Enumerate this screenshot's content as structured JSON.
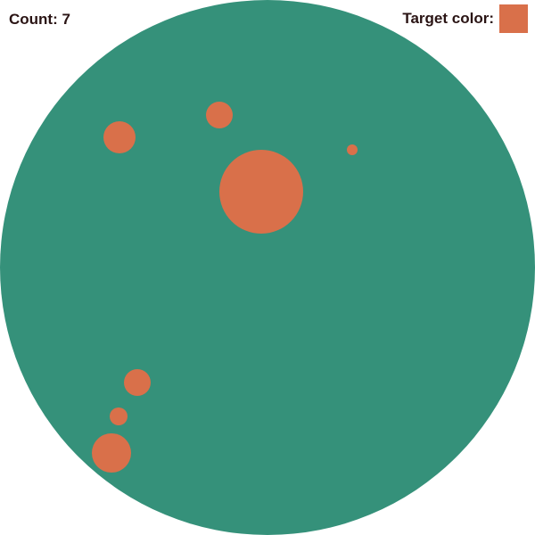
{
  "hud": {
    "count_text": "Count: 7",
    "target_label": "Target color:"
  },
  "colors": {
    "board": "#35917a",
    "target": "#d9704a",
    "hud_text": "#2a1414"
  },
  "board_shape": "circle",
  "dot_count": 7
}
